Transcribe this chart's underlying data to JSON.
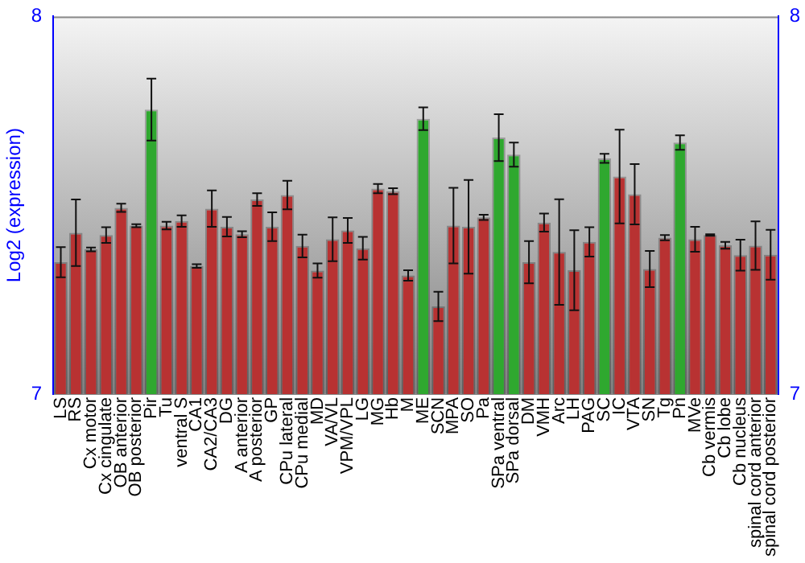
{
  "chart_data": {
    "type": "bar",
    "ylabel": "Log2 (expression)",
    "categories": [
      "LS",
      "RS",
      "Cx motor",
      "Cx cingulate",
      "OB anterior",
      "OB posterior",
      "Pir",
      "Tu",
      "ventral S",
      "CA1",
      "CA2/CA3",
      "DG",
      "A anterior",
      "A posterior",
      "GP",
      "CPu lateral",
      "CPu medial",
      "MD",
      "VA/VL",
      "VPM/VPL",
      "LG",
      "MG",
      "Hb",
      "M",
      "ME",
      "SCN",
      "MPA",
      "SO",
      "Pa",
      "SPa ventral",
      "SPa dorsal",
      "DM",
      "VMH",
      "Arc",
      "LH",
      "PAG",
      "SC",
      "IC",
      "VTA",
      "SN",
      "Tg",
      "Pn",
      "MVe",
      "Cb vermis",
      "Cb lobe",
      "Cb nucleus",
      "spinal cord anterior",
      "spinal cord posterior"
    ],
    "values": [
      7.349,
      7.427,
      7.383,
      7.421,
      7.493,
      7.446,
      7.753,
      7.446,
      7.458,
      7.339,
      7.491,
      7.443,
      7.423,
      7.515,
      7.443,
      7.527,
      7.392,
      7.327,
      7.41,
      7.433,
      7.386,
      7.544,
      7.537,
      7.314,
      7.729,
      7.232,
      7.446,
      7.443,
      7.468,
      7.679,
      7.634,
      7.349,
      7.454,
      7.376,
      7.328,
      7.403,
      7.624,
      7.576,
      7.529,
      7.331,
      7.414,
      7.666,
      7.41,
      7.421,
      7.394,
      7.368,
      7.393,
      7.369
    ],
    "errors": [
      0.04,
      0.088,
      0.005,
      0.021,
      0.011,
      0.004,
      0.082,
      0.01,
      0.015,
      0.005,
      0.048,
      0.026,
      0.008,
      0.017,
      0.038,
      0.038,
      0.03,
      0.019,
      0.058,
      0.033,
      0.03,
      0.012,
      0.008,
      0.014,
      0.03,
      0.039,
      0.1,
      0.124,
      0.007,
      0.062,
      0.032,
      0.056,
      0.024,
      0.14,
      0.106,
      0.039,
      0.012,
      0.124,
      0.08,
      0.048,
      0.007,
      0.019,
      0.033,
      0.002,
      0.009,
      0.041,
      0.064,
      0.066
    ],
    "colors": [
      "#b83232",
      "#b83232",
      "#b83232",
      "#b83232",
      "#b83232",
      "#b83232",
      "#2fa82f",
      "#b83232",
      "#b83232",
      "#b83232",
      "#b83232",
      "#b83232",
      "#b83232",
      "#b83232",
      "#b83232",
      "#b83232",
      "#b83232",
      "#b83232",
      "#b83232",
      "#b83232",
      "#b83232",
      "#b83232",
      "#b83232",
      "#b83232",
      "#2fa82f",
      "#b83232",
      "#b83232",
      "#b83232",
      "#b83232",
      "#2fa82f",
      "#2fa82f",
      "#b83232",
      "#b83232",
      "#b83232",
      "#b83232",
      "#b83232",
      "#2fa82f",
      "#b83232",
      "#b83232",
      "#b83232",
      "#b83232",
      "#2fa82f",
      "#b83232",
      "#b83232",
      "#b83232",
      "#b83232",
      "#b83232",
      "#b83232"
    ],
    "ylim": [
      7,
      8
    ],
    "yticks": [
      7,
      8
    ],
    "y2lim": [
      7,
      8
    ],
    "y2ticks": [
      7,
      8
    ],
    "grid": false,
    "legend": false
  }
}
